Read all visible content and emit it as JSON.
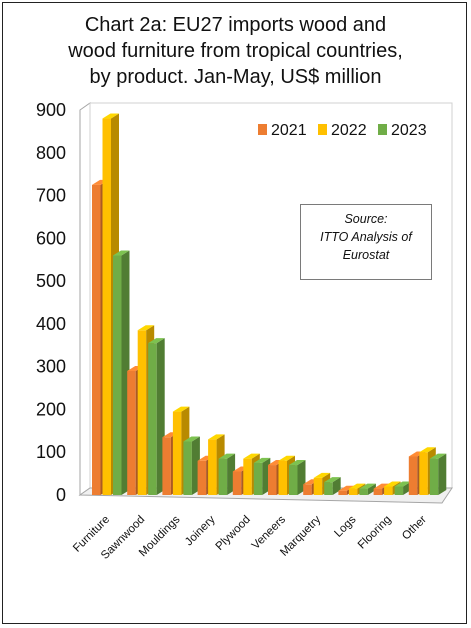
{
  "chart_data": {
    "type": "bar",
    "title": "Chart 2a: EU27 imports wood and wood furniture from tropical countries, by product. Jan-May, US$ million",
    "title_lines": [
      "Chart 2a: EU27 imports wood and",
      "wood furniture from tropical countries,",
      "by product. Jan-May, US$ million"
    ],
    "categories": [
      "Furniture",
      "Sawnwood",
      "Mouldings",
      "Joinery",
      "Plywood",
      "Veneers",
      "Marquetry",
      "Logs",
      "Flooring",
      "Other"
    ],
    "series": [
      {
        "name": "2021",
        "color": "#ed7d31",
        "values": [
          725,
          290,
          135,
          80,
          55,
          70,
          25,
          10,
          15,
          90
        ]
      },
      {
        "name": "2022",
        "color": "#ffc000",
        "values": [
          880,
          385,
          195,
          130,
          85,
          80,
          40,
          15,
          20,
          100
        ]
      },
      {
        "name": "2023",
        "color": "#70ad47",
        "values": [
          560,
          355,
          125,
          85,
          75,
          70,
          30,
          15,
          20,
          85
        ]
      }
    ],
    "yticks": [
      "0",
      "100",
      "200",
      "300",
      "400",
      "500",
      "600",
      "700",
      "800",
      "900"
    ],
    "ylim": [
      0,
      900
    ],
    "xlabel": "",
    "ylabel": "",
    "legend_position": "top-right",
    "grid": false,
    "three_d": true,
    "annotation": {
      "lines": [
        "Source:",
        "ITTO Analysis of",
        "Eurostat"
      ]
    }
  }
}
